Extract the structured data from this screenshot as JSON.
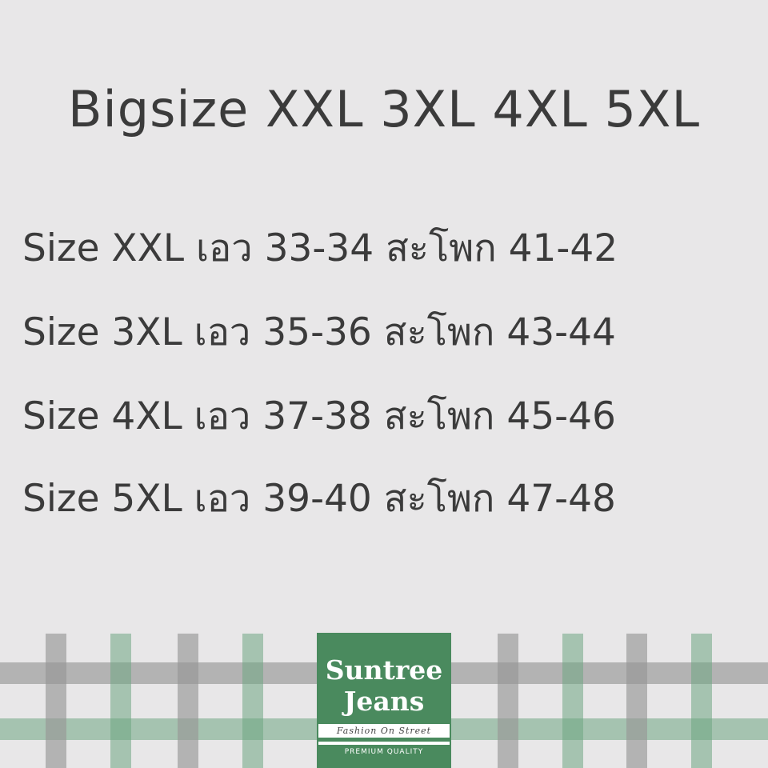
{
  "title": "Bigsize XXL 3XL 4XL 5XL",
  "rows": [
    "Size XXL เอว 33-34 สะโพก 41-42",
    "Size 3XL เอว 35-36 สะโพก 43-44",
    "Size 4XL เอว 37-38 สะโพก 45-46",
    "Size 5XL เอว 39-40 สะโพก 47-48"
  ],
  "logo": {
    "line1": "Suntree",
    "line2": "Jeans",
    "tagline": "Fashion On Street",
    "quality": "PREMIUM QUALITY"
  },
  "colors": {
    "background": "#e8e7e8",
    "text": "#3b3b3b",
    "brand_green": "#4a8a5e"
  }
}
